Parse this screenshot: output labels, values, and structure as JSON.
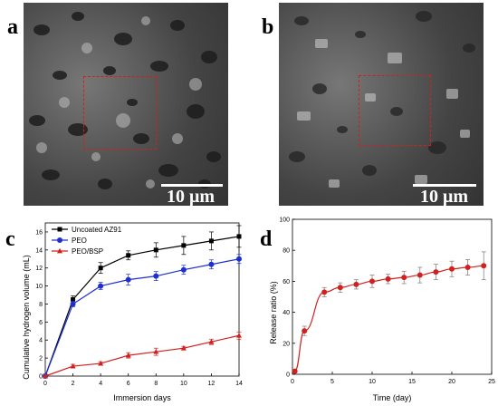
{
  "panels": {
    "a": {
      "label": "a",
      "scale_bar": "10 μm"
    },
    "b": {
      "label": "b",
      "scale_bar": "10 μm"
    },
    "c": {
      "label": "c"
    },
    "d": {
      "label": "d"
    }
  },
  "chart_data": [
    {
      "type": "line",
      "panel": "c",
      "xlabel": "Immersion days",
      "ylabel": "Cumulative hydrogen volume (mL)",
      "xlim": [
        0,
        14
      ],
      "ylim": [
        0,
        17
      ],
      "xticks": [
        0,
        2,
        4,
        6,
        8,
        10,
        12,
        14
      ],
      "yticks": [
        0,
        2,
        4,
        6,
        8,
        10,
        12,
        14,
        16
      ],
      "legend_position": "top-left",
      "series": [
        {
          "name": "Uncoated AZ91",
          "color": "#000000",
          "marker": "square",
          "x": [
            0,
            2,
            4,
            6,
            8,
            10,
            12,
            14
          ],
          "y": [
            0,
            8.5,
            12.0,
            13.4,
            14.0,
            14.5,
            15.0,
            15.5
          ],
          "err": [
            0,
            0.4,
            0.6,
            0.5,
            0.8,
            1.0,
            1.0,
            1.2
          ]
        },
        {
          "name": "PEO",
          "color": "#1e2fd0",
          "marker": "circle",
          "x": [
            0,
            2,
            4,
            6,
            8,
            10,
            12,
            14
          ],
          "y": [
            0,
            8.0,
            10.0,
            10.7,
            11.1,
            11.8,
            12.4,
            13.0
          ],
          "err": [
            0,
            0.3,
            0.4,
            0.6,
            0.5,
            0.5,
            0.5,
            0.5
          ]
        },
        {
          "name": "PEO/BSP",
          "color": "#d2201f",
          "marker": "triangle",
          "x": [
            0,
            2,
            4,
            6,
            8,
            10,
            12,
            14
          ],
          "y": [
            0,
            1.1,
            1.4,
            2.3,
            2.7,
            3.1,
            3.8,
            4.5
          ],
          "err": [
            0,
            0.2,
            0.2,
            0.3,
            0.4,
            0.2,
            0.3,
            0.4
          ]
        }
      ]
    },
    {
      "type": "line",
      "panel": "d",
      "xlabel": "Time (day)",
      "ylabel": "Release ratio (%)",
      "xlim": [
        0,
        25
      ],
      "ylim": [
        0,
        100
      ],
      "xticks": [
        0,
        5,
        10,
        15,
        20,
        25
      ],
      "yticks": [
        0,
        20,
        40,
        60,
        80,
        100
      ],
      "series": [
        {
          "color": "#d2201f",
          "marker": "circle",
          "x": [
            0.3,
            1.5,
            4,
            6,
            8,
            10,
            12,
            14,
            16,
            18,
            20,
            22,
            24
          ],
          "y": [
            2,
            28,
            53,
            56,
            58,
            60,
            61.5,
            62.5,
            64,
            66,
            68,
            69,
            70
          ],
          "err": [
            0,
            3,
            3,
            3,
            3,
            4,
            3,
            4,
            5,
            5,
            5,
            5,
            9
          ]
        }
      ]
    }
  ]
}
